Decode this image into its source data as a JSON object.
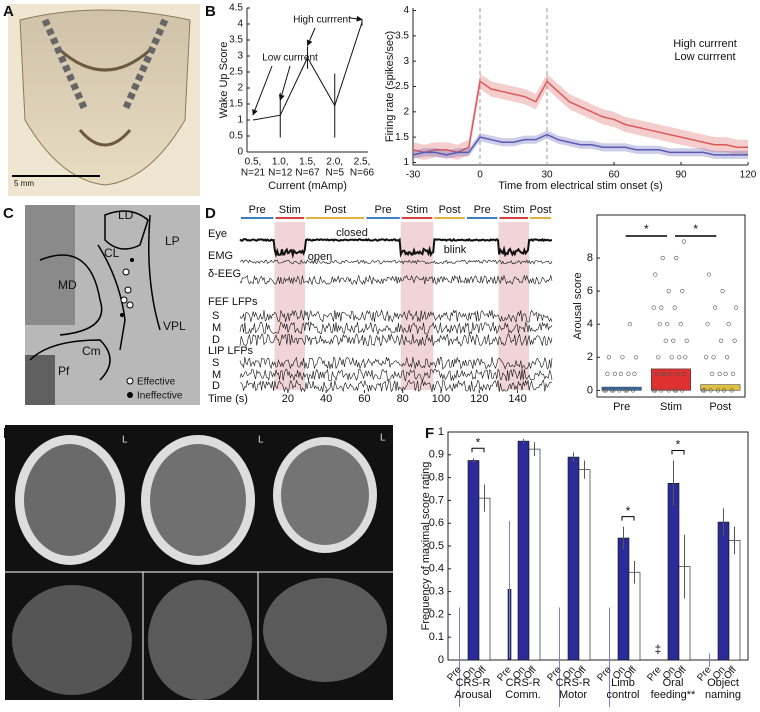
{
  "panels": {
    "labels": [
      "A",
      "B",
      "C",
      "D",
      "E",
      "F"
    ]
  },
  "images": {
    "A": {
      "scale": "5 mm"
    },
    "C": {
      "regions": [
        "LD",
        "LP",
        "CL",
        "MD",
        "VPL",
        "Cm",
        "Pf"
      ],
      "legend": [
        "Effective",
        "Ineffective"
      ]
    },
    "E": {
      "side_marks": [
        "L",
        "L",
        "L"
      ]
    }
  },
  "chart_data": [
    {
      "type": "errorbar",
      "categories": [
        "0.5,",
        "1.0,",
        "1.5,",
        "2.0,",
        "2.5,"
      ],
      "category_sublabels": [
        "N=21",
        "N=12",
        "N=67",
        "N=5",
        "N=66"
      ],
      "values": [
        1.0,
        1.15,
        2.95,
        1.45,
        4.05
      ],
      "errors": [
        0,
        0.7,
        0.35,
        1.0,
        0.1
      ],
      "color": "#111111",
      "ylim": [
        0,
        4.5
      ],
      "yticks": [
        0,
        0.5,
        1,
        1.5,
        2,
        2.5,
        3,
        3.5,
        4,
        4.5
      ],
      "xlabel": "Current (mAmp)",
      "ylabel": "Wake Up Score",
      "annotations": [
        {
          "text": "Low currrent",
          "color": "#2a2aa8"
        },
        {
          "text": "High currrent",
          "color": "#d03030"
        }
      ]
    },
    {
      "type": "line",
      "x": [
        -30,
        -25,
        -20,
        -15,
        -10,
        -5,
        0,
        5,
        10,
        15,
        20,
        25,
        30,
        35,
        40,
        45,
        50,
        55,
        60,
        65,
        70,
        75,
        80,
        85,
        90,
        95,
        100,
        105,
        110,
        115,
        120
      ],
      "series": [
        {
          "name": "High currrent",
          "color": "#dc5a5a",
          "error": 0.15,
          "values": [
            1.25,
            1.2,
            1.25,
            1.25,
            1.2,
            1.3,
            2.6,
            2.45,
            2.4,
            2.35,
            2.3,
            2.2,
            2.6,
            2.4,
            2.2,
            2.1,
            2.0,
            1.9,
            1.85,
            1.75,
            1.7,
            1.65,
            1.6,
            1.55,
            1.5,
            1.45,
            1.4,
            1.35,
            1.35,
            1.3,
            1.3
          ]
        },
        {
          "name": "Low currrent",
          "color": "#5a5ab4",
          "error": 0.08,
          "values": [
            1.15,
            1.2,
            1.2,
            1.15,
            1.2,
            1.2,
            1.5,
            1.45,
            1.4,
            1.4,
            1.45,
            1.45,
            1.55,
            1.45,
            1.4,
            1.35,
            1.35,
            1.3,
            1.3,
            1.3,
            1.25,
            1.25,
            1.25,
            1.2,
            1.2,
            1.2,
            1.2,
            1.15,
            1.15,
            1.15,
            1.15
          ]
        }
      ],
      "xlim": [
        -30,
        120
      ],
      "xticks": [
        -30,
        0,
        30,
        60,
        90,
        120
      ],
      "ylim": [
        0.95,
        4.05
      ],
      "yticks": [
        1,
        1.5,
        2,
        2.5,
        3,
        3.5,
        4
      ],
      "vlines": [
        0,
        30
      ],
      "xlabel": "Time from electrical stim onset (s)",
      "ylabel": "Firing rate (spikes/sec)"
    },
    {
      "type": "timeseries",
      "xlim": [
        -5,
        158
      ],
      "xticks": [
        20,
        40,
        60,
        80,
        100,
        120,
        140
      ],
      "xlabel": "Time (s)",
      "phases": [
        {
          "name": "Pre",
          "start": -5,
          "end": 13,
          "color": "#3b7fc4",
          "shaded": false
        },
        {
          "name": "Stim",
          "start": 13,
          "end": 29,
          "color": "#d94040",
          "shaded": true
        },
        {
          "name": "Post",
          "start": 29,
          "end": 60.5,
          "color": "#e3b23c",
          "shaded": false
        },
        {
          "name": "Pre",
          "start": 60.5,
          "end": 79,
          "color": "#3b7fc4",
          "shaded": false
        },
        {
          "name": "Stim",
          "start": 79,
          "end": 96,
          "color": "#d94040",
          "shaded": true
        },
        {
          "name": "Post",
          "start": 96,
          "end": 113,
          "color": "#e3b23c",
          "shaded": false
        },
        {
          "name": "Pre",
          "start": 113,
          "end": 130,
          "color": "#3b7fc4",
          "shaded": false
        },
        {
          "name": "Stim",
          "start": 130,
          "end": 146,
          "color": "#d94040",
          "shaded": true
        },
        {
          "name": "Post",
          "start": 146,
          "end": 158,
          "color": "#e3b23c",
          "shaded": false
        }
      ],
      "rows": [
        "Eye",
        "EMG",
        "δ-EEG",
        "S",
        "M",
        "D",
        "S",
        "M",
        "D"
      ],
      "group_labels": [
        "FEF LFPs",
        "LIP LFPs"
      ],
      "annotations": [
        "closed",
        "open",
        "blink"
      ]
    },
    {
      "type": "bar",
      "categories": [
        "Pre",
        "Stim",
        "Post"
      ],
      "values": [
        0.2,
        1.3,
        0.35
      ],
      "colors": [
        "#2f6fb0",
        "#e03030",
        "#e0c040"
      ],
      "ylabel": "Arousal score",
      "ylim": [
        -0.4,
        10.6
      ],
      "yticks": [
        0,
        2,
        4,
        6,
        8
      ],
      "points": [
        [
          0,
          0,
          0,
          0,
          0,
          0,
          0,
          0,
          1,
          1,
          1,
          1,
          1,
          2,
          2,
          2,
          4
        ],
        [
          0,
          0,
          0,
          0,
          0,
          0,
          0,
          1,
          1,
          1,
          1,
          1,
          1,
          2,
          2,
          2,
          2,
          3,
          3,
          3,
          4,
          4,
          4,
          5,
          5,
          5,
          6,
          6,
          7,
          8,
          8,
          9
        ],
        [
          0,
          0,
          0,
          0,
          0,
          0,
          1,
          1,
          1,
          1,
          2,
          2,
          2,
          3,
          3,
          4,
          4,
          5,
          5,
          6,
          7
        ]
      ],
      "significance_labels": [
        "*",
        "*"
      ]
    },
    {
      "type": "bar",
      "categories": [
        "CRS-R",
        "CRS-R",
        "CRS-R",
        "Limb",
        "Oral",
        "Object"
      ],
      "category_sublabels": [
        "Arousal",
        "Comm.",
        "Motor",
        "control",
        "feeding**",
        "naming"
      ],
      "series": [
        {
          "name": "Pre",
          "color": "#2b2b9a",
          "values": [
            0,
            0.31,
            0,
            0,
            0,
            0
          ],
          "errors": [
            0.23,
            0.3,
            0.23,
            0.23,
            null,
            0.03
          ]
        },
        {
          "name": "On",
          "color": "#2b2b9a",
          "values": [
            0.875,
            0.96,
            0.89,
            0.535,
            0.775,
            0.605
          ],
          "errors": [
            0.01,
            0.01,
            0.02,
            0.05,
            0.1,
            0.06
          ]
        },
        {
          "name": "Off",
          "color": "#ffffff",
          "values": [
            0.71,
            0.925,
            0.835,
            0.385,
            0.41,
            0.525
          ],
          "errors": [
            0.06,
            0.03,
            0.04,
            0.05,
            0.14,
            0.06
          ]
        }
      ],
      "ylim": [
        0,
        1
      ],
      "yticks": [
        0,
        0.1,
        0.2,
        0.3,
        0.4,
        0.5,
        0.6,
        0.7,
        0.8,
        0.9,
        1
      ],
      "ylabel": "Frequency of maximal score rating",
      "significance_labels": [
        "*",
        null,
        null,
        "*",
        "*",
        null
      ],
      "annotation": "‡"
    }
  ]
}
